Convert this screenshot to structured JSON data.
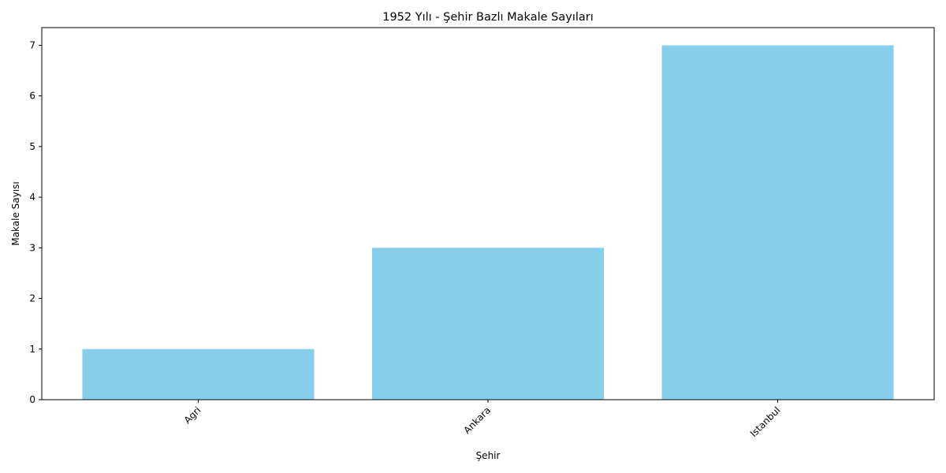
{
  "chart_data": {
    "type": "bar",
    "title": "1952 Yılı - Şehir Bazlı Makale Sayıları",
    "xlabel": "Şehir",
    "ylabel": "Makale Sayısı",
    "categories": [
      "Agri",
      "Ankara",
      "Istanbul"
    ],
    "values": [
      1,
      3,
      7
    ],
    "ylim": [
      0,
      7.35
    ],
    "yticks": [
      0,
      1,
      2,
      3,
      4,
      5,
      6,
      7
    ],
    "grid": false,
    "bar_color": "#87ceeb"
  }
}
